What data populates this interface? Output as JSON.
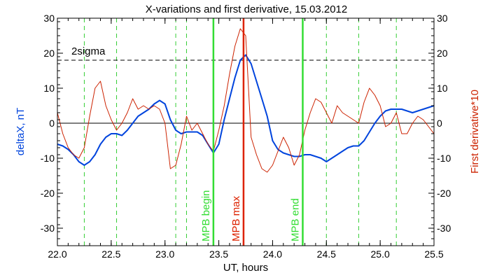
{
  "chart_data": {
    "type": "line",
    "title": "X-variations and first derivative, 15.03.2012",
    "xlabel": "UT, hours",
    "ylabel_left": "deltaX, nT",
    "ylabel_right": "First derivative*10",
    "xlim": [
      22.0,
      25.5
    ],
    "ylim": [
      -35,
      30
    ],
    "x_ticks": [
      "22.0",
      "22.5",
      "23.0",
      "23.5",
      "24.0",
      "24.5",
      "25.0",
      "25.5"
    ],
    "y_ticks": [
      "30",
      "20",
      "10",
      "0",
      "-10",
      "-20",
      "-30"
    ],
    "x_tick_values": [
      22.0,
      22.5,
      23.0,
      23.5,
      24.0,
      24.5,
      25.0,
      25.5
    ],
    "y_tick_values": [
      30,
      20,
      10,
      0,
      -10,
      -20,
      -30
    ],
    "series": [
      {
        "name": "deltaX, nT",
        "color": "#0044dd",
        "x": [
          22.0,
          22.05,
          22.1,
          22.15,
          22.2,
          22.25,
          22.3,
          22.35,
          22.4,
          22.45,
          22.5,
          22.55,
          22.6,
          22.65,
          22.7,
          22.75,
          22.8,
          22.85,
          22.9,
          22.95,
          23.0,
          23.05,
          23.1,
          23.15,
          23.2,
          23.25,
          23.3,
          23.35,
          23.4,
          23.45,
          23.5,
          23.55,
          23.6,
          23.65,
          23.7,
          23.75,
          23.8,
          23.85,
          23.9,
          23.95,
          24.0,
          24.05,
          24.1,
          24.15,
          24.2,
          24.25,
          24.3,
          24.35,
          24.4,
          24.45,
          24.5,
          24.55,
          24.6,
          24.65,
          24.7,
          24.75,
          24.8,
          24.85,
          24.9,
          24.95,
          25.0,
          25.05,
          25.1,
          25.15,
          25.2,
          25.25,
          25.3,
          25.35,
          25.4,
          25.45,
          25.5
        ],
        "y": [
          -6,
          -6.5,
          -7.5,
          -9,
          -11,
          -12,
          -11,
          -9,
          -6,
          -4,
          -3,
          -3,
          -3.5,
          -2,
          0,
          2,
          3,
          4,
          5.5,
          6.5,
          5.5,
          1,
          -2,
          -3,
          -2.5,
          -2.5,
          -2.5,
          -3.5,
          -6,
          -8.5,
          -6,
          1,
          7,
          13,
          18,
          19.5,
          17,
          12,
          7,
          2,
          -5,
          -7.5,
          -8.5,
          -9,
          -9.5,
          -9.5,
          -9,
          -9,
          -9.5,
          -10,
          -11,
          -10,
          -9,
          -8,
          -7,
          -6.5,
          -6.5,
          -5,
          -2.5,
          0,
          2,
          3.5,
          4,
          4,
          4,
          3.5,
          3,
          3.5,
          4,
          4.5,
          5
        ]
      },
      {
        "name": "First derivative*10",
        "color": "#cc2200",
        "x": [
          22.0,
          22.05,
          22.1,
          22.15,
          22.2,
          22.25,
          22.3,
          22.35,
          22.4,
          22.45,
          22.5,
          22.55,
          22.6,
          22.65,
          22.7,
          22.75,
          22.8,
          22.85,
          22.9,
          22.95,
          23.0,
          23.05,
          23.1,
          23.15,
          23.2,
          23.25,
          23.3,
          23.35,
          23.4,
          23.45,
          23.5,
          23.55,
          23.6,
          23.65,
          23.7,
          23.75,
          23.8,
          23.85,
          23.9,
          23.95,
          24.0,
          24.05,
          24.1,
          24.15,
          24.2,
          24.25,
          24.3,
          24.35,
          24.4,
          24.45,
          24.5,
          24.55,
          24.6,
          24.65,
          24.7,
          24.75,
          24.8,
          24.85,
          24.9,
          24.95,
          25.0,
          25.05,
          25.1,
          25.15,
          25.2,
          25.25,
          25.3,
          25.35,
          25.4,
          25.45,
          25.5
        ],
        "y": [
          3,
          -3,
          -7,
          -9,
          -10,
          -7,
          2,
          10,
          12,
          5,
          1,
          -2,
          0,
          3,
          7,
          4,
          5,
          4,
          5,
          4,
          0,
          -13,
          -12,
          -6,
          2,
          -2,
          0,
          -3,
          -6,
          -8,
          -2,
          5,
          14,
          22,
          27,
          25,
          -4,
          -9,
          -13,
          -14,
          -12,
          -8,
          -4,
          -7,
          -12,
          -9,
          -2,
          3,
          7,
          6,
          3,
          0,
          5,
          3,
          2,
          1,
          0,
          6,
          10,
          8,
          5,
          -1,
          0,
          3,
          -3,
          -3,
          0,
          2,
          1,
          -1,
          -3
        ]
      }
    ],
    "horizontal_lines": [
      {
        "label": "",
        "y": 0,
        "style": "solid",
        "color": "#000000"
      },
      {
        "label": "2sigma",
        "y": 18,
        "style": "dashed",
        "color": "#000000"
      }
    ],
    "green_dashed_x": [
      22.25,
      22.55,
      23.1,
      23.2,
      24.5,
      24.8,
      25.15
    ],
    "vertical_markers": [
      {
        "label": "MPB begin",
        "x": 23.45,
        "color": "#33dd33"
      },
      {
        "label": "MPB max",
        "x": 23.73,
        "color": "#dd2200"
      },
      {
        "label": "MPB end",
        "x": 24.28,
        "color": "#33dd33"
      }
    ],
    "grid": false
  }
}
